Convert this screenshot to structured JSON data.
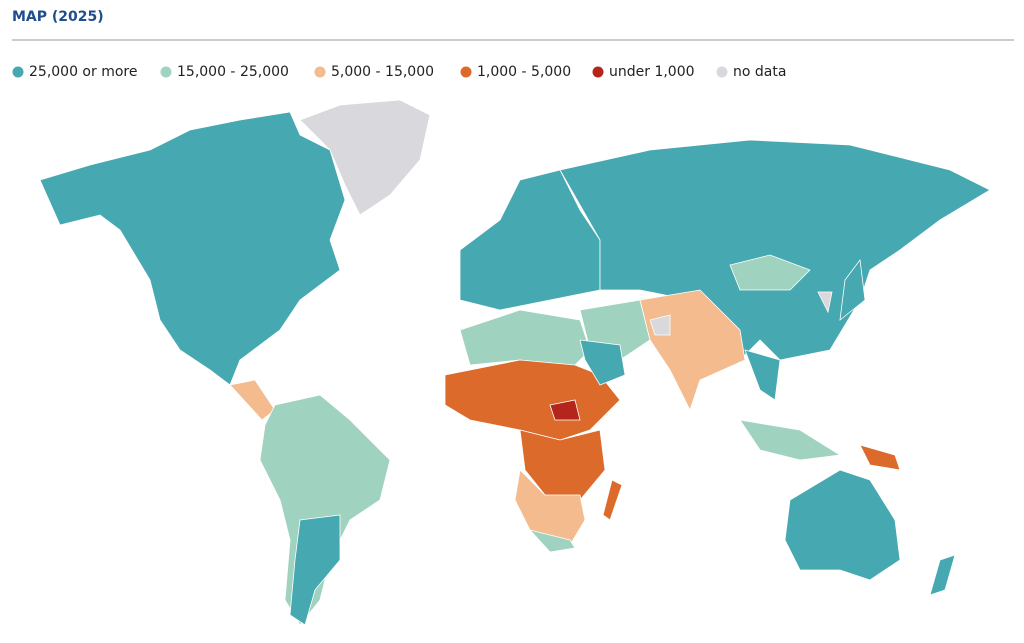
{
  "header": {
    "title": "MAP (2025)"
  },
  "legend": {
    "items": [
      {
        "label": "25,000 or more",
        "color": "#46a8b0"
      },
      {
        "label": "15,000 - 25,000",
        "color": "#9fd3bf"
      },
      {
        "label": "5,000 - 15,000",
        "color": "#f3bb8e"
      },
      {
        "label": "1,000 - 5,000",
        "color": "#dc6b2b"
      },
      {
        "label": "under 1,000",
        "color": "#b4261c"
      },
      {
        "label": "no data",
        "color": "#d8d8dd"
      }
    ]
  }
}
